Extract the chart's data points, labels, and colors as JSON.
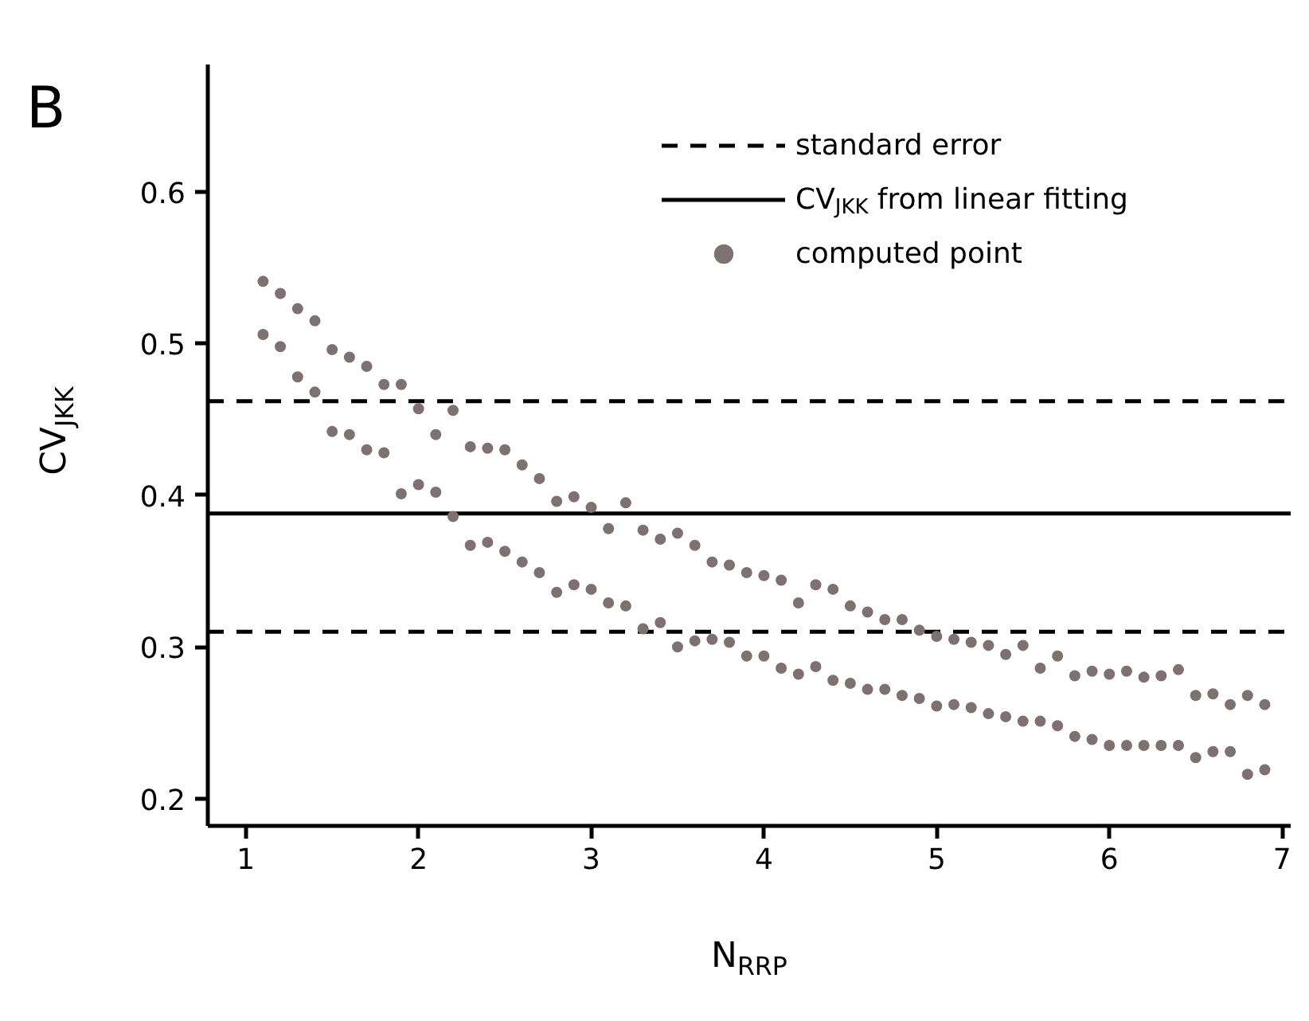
{
  "chart_data": {
    "type": "scatter",
    "xlabel": "N$_{RRP}$",
    "ylabel": "CV$_{JKK}$",
    "annotations": [
      "B"
    ],
    "xlim": [
      0.78,
      7.05
    ],
    "ylim": [
      0.182,
      0.684
    ],
    "xticks": [
      1,
      2,
      3,
      4,
      5,
      6,
      7
    ],
    "yticks": [
      0.2,
      0.3,
      0.4,
      0.5,
      0.6
    ],
    "grid": false,
    "legend": "top right",
    "marker": "circle",
    "ref_lines": [
      {
        "axis": "y",
        "value": 0.462,
        "label": "standard error",
        "line_style": "dashed",
        "color": "#000000"
      },
      {
        "axis": "y",
        "value": 0.388,
        "label": "CV$_{JKK}$ from linear fitting",
        "line_style": "solid",
        "color": "#000000"
      },
      {
        "axis": "y",
        "value": 0.31,
        "label": null,
        "line_style": "dashed",
        "color": "#000000"
      }
    ],
    "series": [
      {
        "name": "computed point",
        "color": "#7d7171",
        "x": [
          1.1,
          1.1,
          1.2,
          1.2,
          1.3,
          1.3,
          1.4,
          1.4,
          1.5,
          1.5,
          1.6,
          1.6,
          1.7,
          1.7,
          1.8,
          1.8,
          1.9,
          1.9,
          2.0,
          2.0,
          2.1,
          2.1,
          2.2,
          2.2,
          2.3,
          2.3,
          2.4,
          2.4,
          2.5,
          2.5,
          2.6,
          2.6,
          2.7,
          2.7,
          2.8,
          2.8,
          2.9,
          2.9,
          3.0,
          3.0,
          3.1,
          3.1,
          3.2,
          3.2,
          3.3,
          3.3,
          3.4,
          3.4,
          3.5,
          3.5,
          3.6,
          3.6,
          3.7,
          3.7,
          3.8,
          3.8,
          3.9,
          3.9,
          4.0,
          4.0,
          4.1,
          4.1,
          4.2,
          4.2,
          4.3,
          4.3,
          4.4,
          4.4,
          4.5,
          4.5,
          4.6,
          4.6,
          4.7,
          4.7,
          4.8,
          4.8,
          4.9,
          4.9,
          5.0,
          5.0,
          5.1,
          5.1,
          5.2,
          5.2,
          5.3,
          5.3,
          5.4,
          5.4,
          5.5,
          5.5,
          5.6,
          5.6,
          5.7,
          5.7,
          5.8,
          5.8,
          5.9,
          5.9,
          6.0,
          6.0,
          6.1,
          6.1,
          6.2,
          6.2,
          6.3,
          6.3,
          6.4,
          6.4,
          6.5,
          6.5,
          6.6,
          6.6,
          6.7,
          6.7,
          6.8,
          6.8,
          6.9,
          6.9
        ],
        "values": [
          0.541,
          0.506,
          0.533,
          0.498,
          0.523,
          0.478,
          0.515,
          0.468,
          0.496,
          0.442,
          0.491,
          0.44,
          0.485,
          0.43,
          0.473,
          0.428,
          0.473,
          0.401,
          0.457,
          0.407,
          0.44,
          0.402,
          0.456,
          0.386,
          0.432,
          0.367,
          0.431,
          0.369,
          0.43,
          0.363,
          0.42,
          0.356,
          0.411,
          0.349,
          0.396,
          0.336,
          0.399,
          0.341,
          0.392,
          0.338,
          0.378,
          0.329,
          0.395,
          0.327,
          0.377,
          0.312,
          0.371,
          0.316,
          0.375,
          0.3,
          0.367,
          0.304,
          0.356,
          0.305,
          0.354,
          0.303,
          0.349,
          0.294,
          0.347,
          0.294,
          0.344,
          0.286,
          0.329,
          0.282,
          0.341,
          0.287,
          0.338,
          0.278,
          0.327,
          0.276,
          0.323,
          0.272,
          0.318,
          0.272,
          0.318,
          0.268,
          0.311,
          0.266,
          0.307,
          0.261,
          0.305,
          0.262,
          0.303,
          0.26,
          0.301,
          0.256,
          0.295,
          0.254,
          0.301,
          0.251,
          0.286,
          0.251,
          0.294,
          0.248,
          0.281,
          0.241,
          0.284,
          0.239,
          0.282,
          0.235,
          0.284,
          0.235,
          0.28,
          0.235,
          0.281,
          0.235,
          0.285,
          0.235,
          0.268,
          0.227,
          0.269,
          0.231,
          0.262,
          0.231,
          0.268,
          0.216,
          0.262,
          0.219
        ]
      }
    ]
  }
}
